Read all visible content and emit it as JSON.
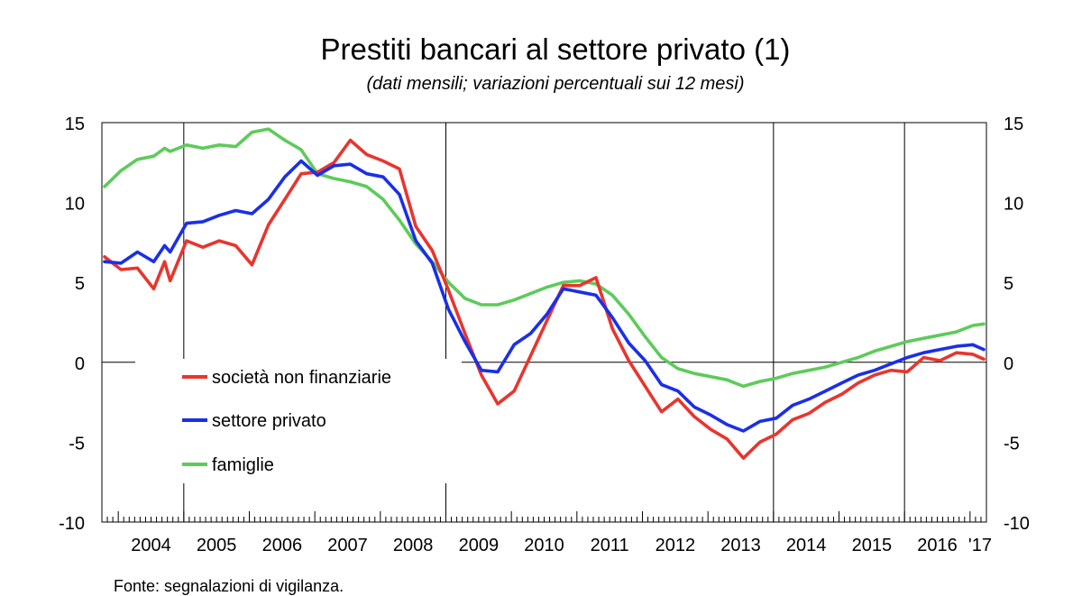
{
  "chart_data": {
    "type": "line",
    "title": "Prestiti bancari al settore privato (1)",
    "subtitle": "(dati mensili; variazioni percentuali sui 12 mesi)",
    "source": "Fonte: segnalazioni di vigilanza.",
    "year_labels": [
      "2004",
      "2005",
      "2006",
      "2007",
      "2008",
      "2009",
      "2010",
      "2011",
      "2012",
      "2013",
      "2014",
      "2015",
      "2016",
      "'17"
    ],
    "x_start": "2003-10",
    "x_end": "2017-03",
    "ylim": [
      -10,
      15
    ],
    "yticks": [
      -10,
      -5,
      0,
      5,
      10,
      15
    ],
    "y_axes": "left-and-right",
    "grid": "vertical lines at Jan 2005, Jan 2009, Jan 2014, Jan 2016",
    "legend_position": "lower-left",
    "series": [
      {
        "name": "società non finanziarie",
        "color": "#e8352e",
        "points": [
          [
            "2003-10",
            6.6
          ],
          [
            "2004-01",
            5.8
          ],
          [
            "2004-04",
            5.9
          ],
          [
            "2004-07",
            4.6
          ],
          [
            "2004-09",
            6.3
          ],
          [
            "2004-10",
            5.1
          ],
          [
            "2005-01",
            7.6
          ],
          [
            "2005-04",
            7.2
          ],
          [
            "2005-07",
            7.6
          ],
          [
            "2005-10",
            7.3
          ],
          [
            "2006-01",
            6.1
          ],
          [
            "2006-04",
            8.6
          ],
          [
            "2006-07",
            10.2
          ],
          [
            "2006-10",
            11.8
          ],
          [
            "2007-01",
            11.9
          ],
          [
            "2007-04",
            12.5
          ],
          [
            "2007-07",
            13.9
          ],
          [
            "2007-10",
            13.0
          ],
          [
            "2008-01",
            12.6
          ],
          [
            "2008-04",
            12.1
          ],
          [
            "2008-07",
            8.5
          ],
          [
            "2008-10",
            7.0
          ],
          [
            "2009-01",
            4.5
          ],
          [
            "2009-04",
            1.8
          ],
          [
            "2009-07",
            -0.8
          ],
          [
            "2009-10",
            -2.6
          ],
          [
            "2010-01",
            -1.8
          ],
          [
            "2010-04",
            0.4
          ],
          [
            "2010-07",
            2.6
          ],
          [
            "2010-10",
            4.8
          ],
          [
            "2011-01",
            4.8
          ],
          [
            "2011-04",
            5.3
          ],
          [
            "2011-07",
            2.1
          ],
          [
            "2011-10",
            0.1
          ],
          [
            "2012-01",
            -1.5
          ],
          [
            "2012-04",
            -3.1
          ],
          [
            "2012-07",
            -2.3
          ],
          [
            "2012-10",
            -3.4
          ],
          [
            "2013-01",
            -4.2
          ],
          [
            "2013-04",
            -4.8
          ],
          [
            "2013-07",
            -6.0
          ],
          [
            "2013-10",
            -5.0
          ],
          [
            "2014-01",
            -4.5
          ],
          [
            "2014-04",
            -3.6
          ],
          [
            "2014-07",
            -3.2
          ],
          [
            "2014-10",
            -2.5
          ],
          [
            "2015-01",
            -2.0
          ],
          [
            "2015-04",
            -1.3
          ],
          [
            "2015-07",
            -0.8
          ],
          [
            "2015-10",
            -0.5
          ],
          [
            "2016-01",
            -0.6
          ],
          [
            "2016-04",
            0.3
          ],
          [
            "2016-07",
            0.1
          ],
          [
            "2016-10",
            0.6
          ],
          [
            "2017-01",
            0.5
          ],
          [
            "2017-03",
            0.2
          ]
        ]
      },
      {
        "name": "settore privato",
        "color": "#1a2fe8",
        "points": [
          [
            "2003-10",
            6.3
          ],
          [
            "2004-01",
            6.2
          ],
          [
            "2004-04",
            6.9
          ],
          [
            "2004-07",
            6.3
          ],
          [
            "2004-09",
            7.3
          ],
          [
            "2004-10",
            6.9
          ],
          [
            "2005-01",
            8.7
          ],
          [
            "2005-04",
            8.8
          ],
          [
            "2005-07",
            9.2
          ],
          [
            "2005-10",
            9.5
          ],
          [
            "2006-01",
            9.3
          ],
          [
            "2006-04",
            10.2
          ],
          [
            "2006-07",
            11.6
          ],
          [
            "2006-10",
            12.6
          ],
          [
            "2007-01",
            11.7
          ],
          [
            "2007-04",
            12.3
          ],
          [
            "2007-07",
            12.4
          ],
          [
            "2007-10",
            11.8
          ],
          [
            "2008-01",
            11.6
          ],
          [
            "2008-04",
            10.5
          ],
          [
            "2008-07",
            7.6
          ],
          [
            "2008-10",
            6.2
          ],
          [
            "2009-01",
            3.3
          ],
          [
            "2009-04",
            1.3
          ],
          [
            "2009-07",
            -0.5
          ],
          [
            "2009-10",
            -0.6
          ],
          [
            "2010-01",
            1.1
          ],
          [
            "2010-04",
            1.8
          ],
          [
            "2010-07",
            3.0
          ],
          [
            "2010-10",
            4.6
          ],
          [
            "2011-01",
            4.4
          ],
          [
            "2011-04",
            4.2
          ],
          [
            "2011-07",
            2.8
          ],
          [
            "2011-10",
            1.2
          ],
          [
            "2012-01",
            0.1
          ],
          [
            "2012-04",
            -1.4
          ],
          [
            "2012-07",
            -1.8
          ],
          [
            "2012-10",
            -2.8
          ],
          [
            "2013-01",
            -3.3
          ],
          [
            "2013-04",
            -3.9
          ],
          [
            "2013-07",
            -4.3
          ],
          [
            "2013-10",
            -3.7
          ],
          [
            "2014-01",
            -3.5
          ],
          [
            "2014-04",
            -2.7
          ],
          [
            "2014-07",
            -2.3
          ],
          [
            "2014-10",
            -1.8
          ],
          [
            "2015-01",
            -1.3
          ],
          [
            "2015-04",
            -0.8
          ],
          [
            "2015-07",
            -0.5
          ],
          [
            "2015-10",
            -0.1
          ],
          [
            "2016-01",
            0.3
          ],
          [
            "2016-04",
            0.6
          ],
          [
            "2016-07",
            0.8
          ],
          [
            "2016-10",
            1.0
          ],
          [
            "2017-01",
            1.1
          ],
          [
            "2017-03",
            0.8
          ]
        ]
      },
      {
        "name": "famiglie",
        "color": "#5dcb5a",
        "points": [
          [
            "2003-10",
            11.0
          ],
          [
            "2004-01",
            12.0
          ],
          [
            "2004-04",
            12.7
          ],
          [
            "2004-07",
            12.9
          ],
          [
            "2004-09",
            13.4
          ],
          [
            "2004-10",
            13.2
          ],
          [
            "2005-01",
            13.6
          ],
          [
            "2005-04",
            13.4
          ],
          [
            "2005-07",
            13.6
          ],
          [
            "2005-10",
            13.5
          ],
          [
            "2006-01",
            14.4
          ],
          [
            "2006-04",
            14.6
          ],
          [
            "2006-07",
            13.9
          ],
          [
            "2006-10",
            13.3
          ],
          [
            "2007-01",
            11.8
          ],
          [
            "2007-04",
            11.5
          ],
          [
            "2007-07",
            11.3
          ],
          [
            "2007-10",
            11.0
          ],
          [
            "2008-01",
            10.2
          ],
          [
            "2008-04",
            8.9
          ],
          [
            "2008-07",
            7.4
          ],
          [
            "2008-10",
            6.3
          ],
          [
            "2009-01",
            5.0
          ],
          [
            "2009-04",
            4.0
          ],
          [
            "2009-07",
            3.6
          ],
          [
            "2009-10",
            3.6
          ],
          [
            "2010-01",
            3.9
          ],
          [
            "2010-04",
            4.3
          ],
          [
            "2010-07",
            4.7
          ],
          [
            "2010-10",
            5.0
          ],
          [
            "2011-01",
            5.1
          ],
          [
            "2011-04",
            4.9
          ],
          [
            "2011-07",
            4.2
          ],
          [
            "2011-10",
            3.0
          ],
          [
            "2012-01",
            1.6
          ],
          [
            "2012-04",
            0.3
          ],
          [
            "2012-07",
            -0.4
          ],
          [
            "2012-10",
            -0.7
          ],
          [
            "2013-01",
            -0.9
          ],
          [
            "2013-04",
            -1.1
          ],
          [
            "2013-07",
            -1.5
          ],
          [
            "2013-10",
            -1.2
          ],
          [
            "2014-01",
            -1.0
          ],
          [
            "2014-04",
            -0.7
          ],
          [
            "2014-07",
            -0.5
          ],
          [
            "2014-10",
            -0.3
          ],
          [
            "2015-01",
            0.0
          ],
          [
            "2015-04",
            0.3
          ],
          [
            "2015-07",
            0.7
          ],
          [
            "2015-10",
            1.0
          ],
          [
            "2016-01",
            1.3
          ],
          [
            "2016-04",
            1.5
          ],
          [
            "2016-07",
            1.7
          ],
          [
            "2016-10",
            1.9
          ],
          [
            "2017-01",
            2.3
          ],
          [
            "2017-03",
            2.4
          ]
        ]
      }
    ]
  }
}
